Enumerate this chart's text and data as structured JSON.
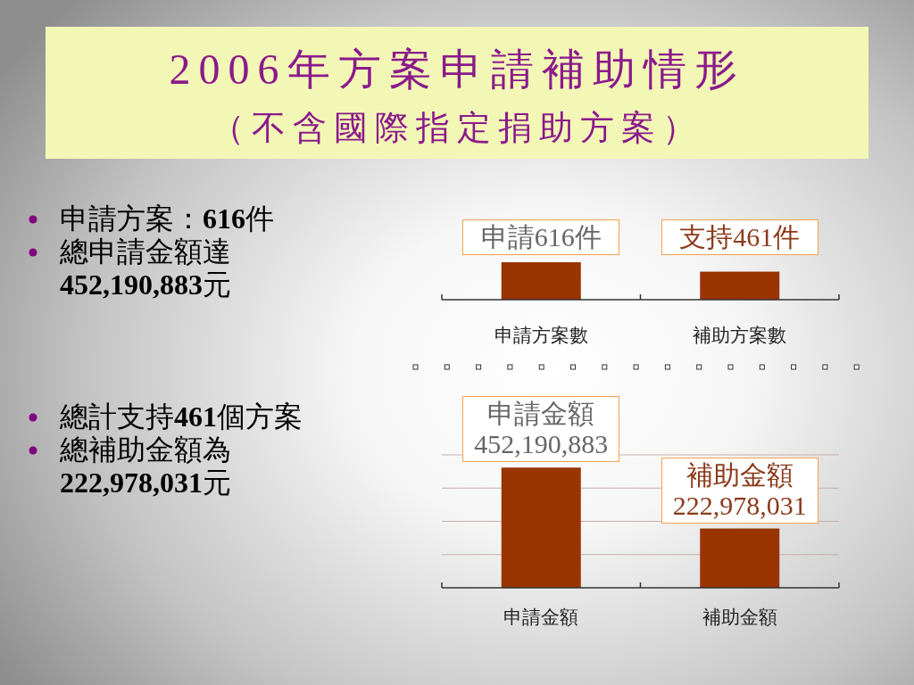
{
  "chart_data": [
    {
      "type": "bar",
      "title": "2006年方案申請補助情形",
      "subtitle": "（不含國際指定捐助方案）",
      "categories": [
        "申請方案數",
        "補助方案數"
      ],
      "values": [
        616,
        461
      ],
      "value_labels": [
        "申請616件",
        "支持461件"
      ],
      "color": "#993300",
      "tick_labels": "x",
      "annotations": [
        "申請方案：616件",
        "總申請金額達452,190,883元"
      ]
    },
    {
      "type": "bar",
      "categories": [
        "申請金額",
        "補助金額"
      ],
      "values": [
        452190883,
        222978031
      ],
      "value_labels": [
        "申請金額452,190,883",
        "補助金額222,978,031"
      ],
      "color": "#993300",
      "grid": "y",
      "yticks": [
        {
          "value": 125000000,
          "label": null
        },
        {
          "value": 250000000,
          "label": null
        },
        {
          "value": 375000000,
          "label": null
        },
        {
          "value": 500000000,
          "label": null
        }
      ],
      "tick_labels": "x",
      "annotations": [
        "總計支持461個方案",
        "總補助金額為222,978,031元"
      ]
    }
  ]
}
